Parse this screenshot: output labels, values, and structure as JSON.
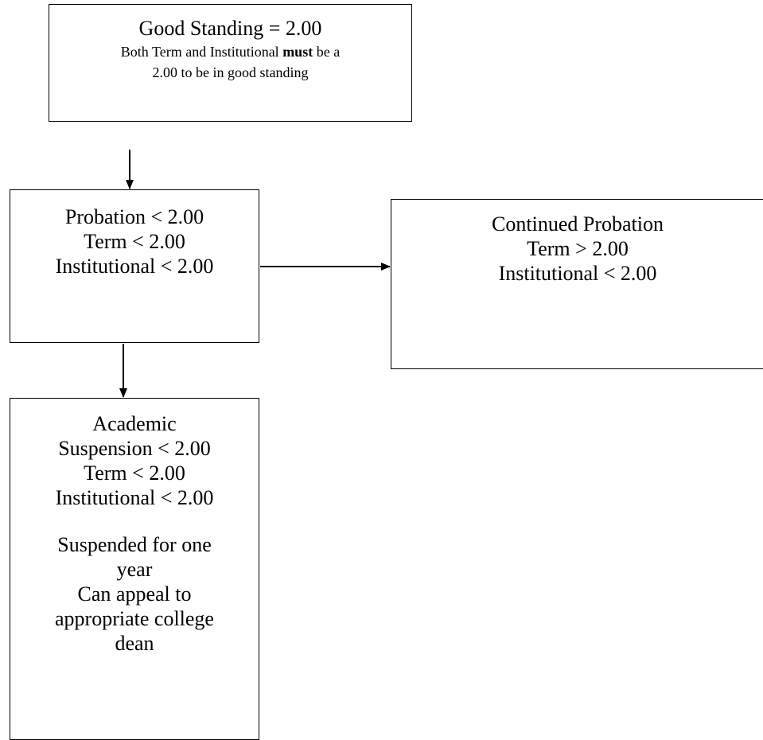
{
  "good_standing": {
    "title": "Good Standing = 2.00",
    "note_before": "Both Term and Institutional ",
    "note_emphasis": "must",
    "note_after": " be a",
    "note_line2": "2.00 to be in good standing"
  },
  "probation": {
    "title": "Probation <  2.00",
    "term": "Term < 2.00",
    "institutional": "Institutional < 2.00"
  },
  "continued_probation": {
    "title": "Continued Probation",
    "term": "Term > 2.00",
    "institutional": "Institutional < 2.00"
  },
  "academic_suspension": {
    "title_line1": "Academic",
    "title_line2": "Suspension <  2.00",
    "term": "Term < 2.00",
    "institutional": "Institutional < 2.00",
    "suspended_line1": "Suspended for one",
    "suspended_line2": "year",
    "appeal_line1": "Can appeal to",
    "appeal_line2": "appropriate college",
    "appeal_line3": "dean"
  },
  "colors": {
    "stroke": "#000000",
    "background": "#ffffff"
  }
}
